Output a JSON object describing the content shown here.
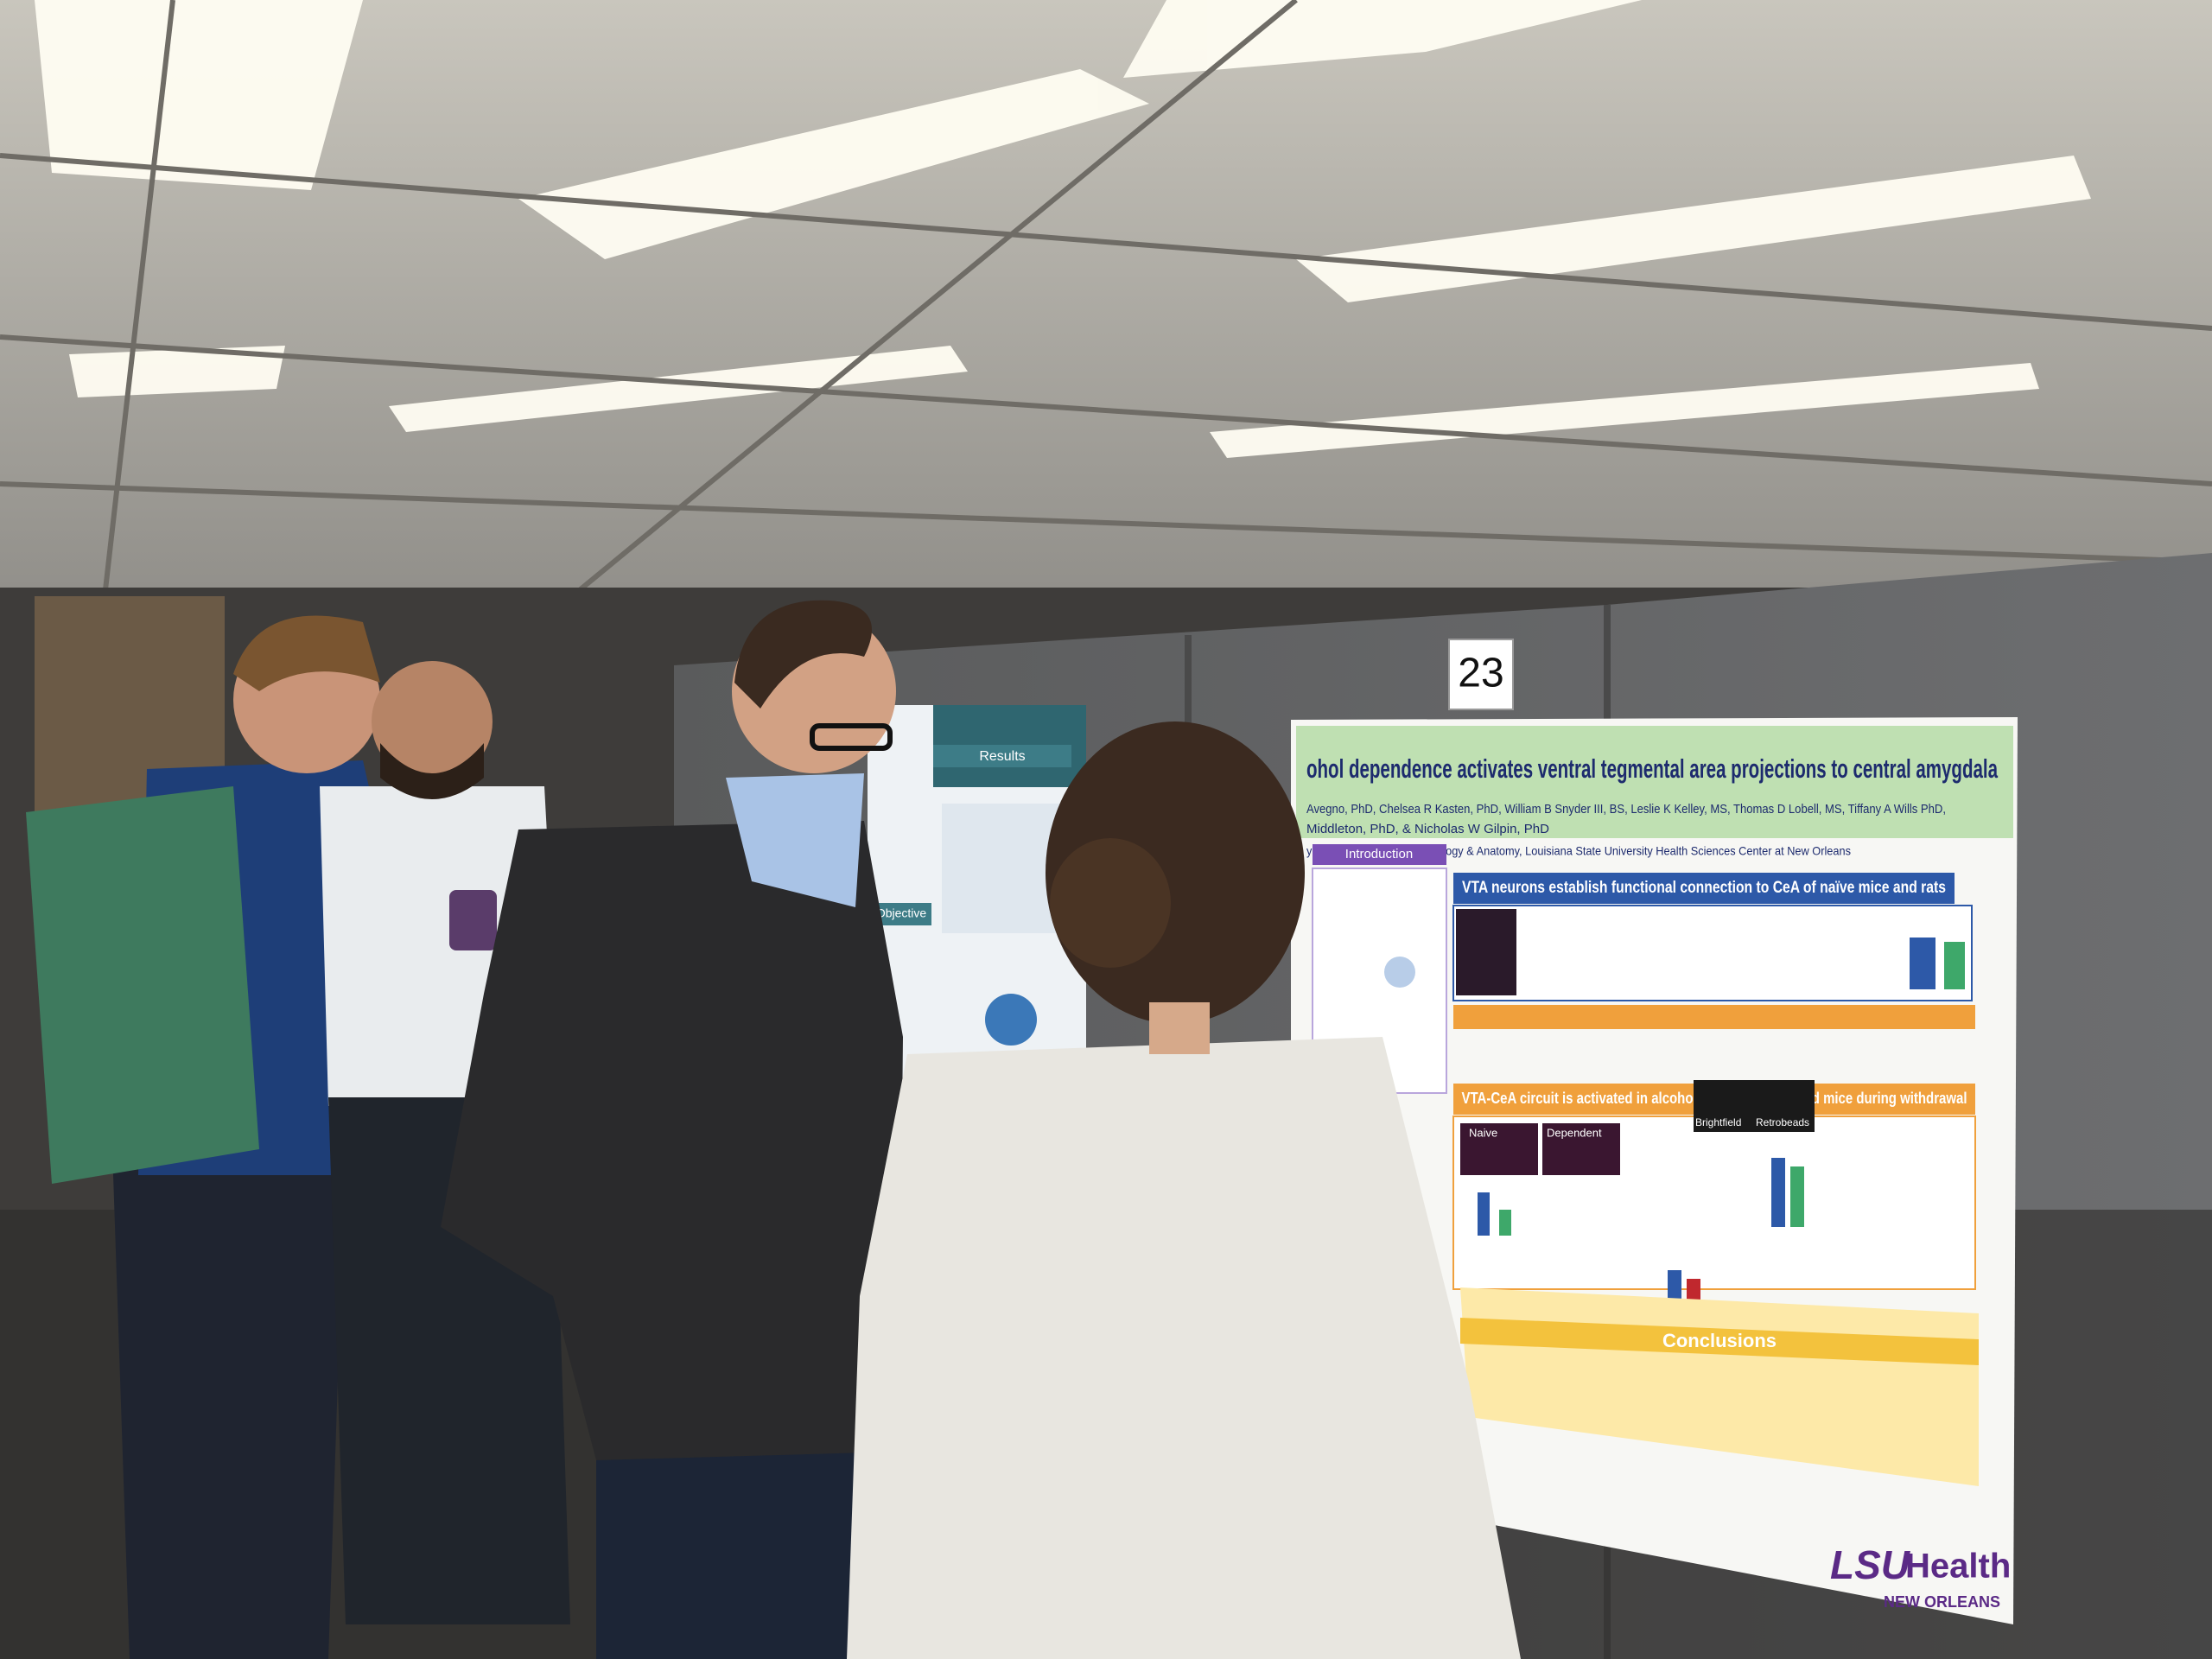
{
  "booth_number": "23",
  "poster": {
    "title": "ohol dependence activates ventral tegmental area projections to central amygdala",
    "authors": "Avegno, PhD, Chelsea R Kasten, PhD, William B Snyder III, BS, Leslie K Kelley, MS, Thomas D Lobell, MS, Tiffany A Wills PhD,",
    "authors_line2": "Middleton, PhD, & Nicholas W Gilpin, PhD",
    "affiliation": "y of Physiology and Cell Biology & Anatomy, Louisiana State University Health Sciences Center at New Orleans",
    "sections": [
      "Introduction",
      "VTA neurons establish functional connection to CeA of naïve mice and rats",
      "VTA-CeA circuit is activated in alcohol dependent rats and mice during withdrawal",
      "Conclusions"
    ],
    "panel_labels": [
      "Naive",
      "Dependent",
      "Brightfield",
      "Retrobeads"
    ],
    "logo": {
      "name": "LSU",
      "suffix": "Health",
      "location": "NEW ORLEANS"
    }
  },
  "left_poster": {
    "sections": [
      "Results",
      "Objective"
    ]
  }
}
